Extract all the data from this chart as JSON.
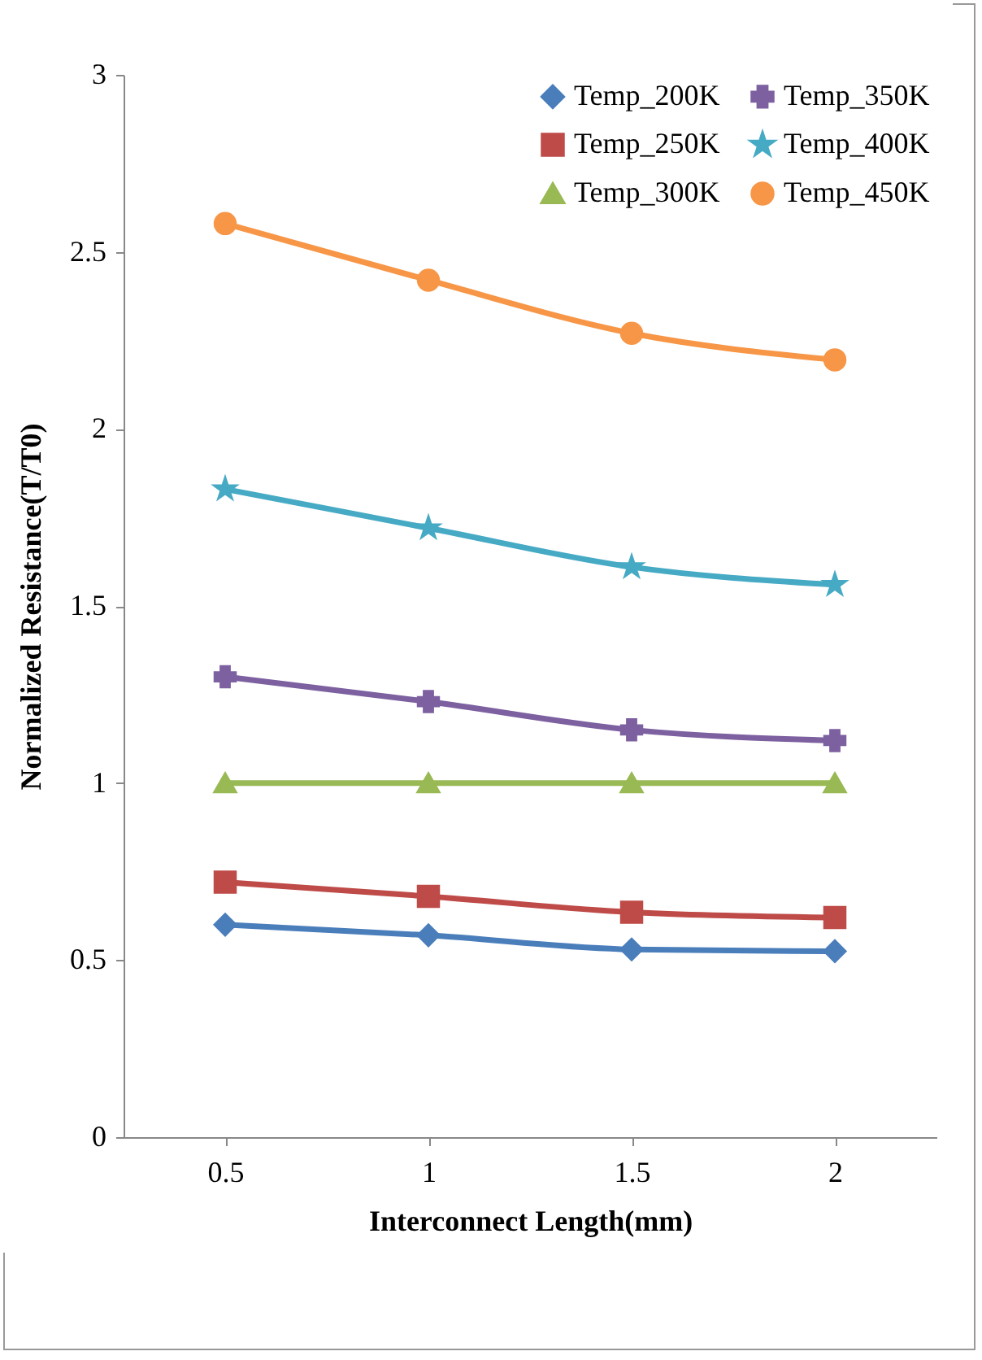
{
  "chart_data": {
    "type": "line",
    "xlabel": "Interconnect Length(mm)",
    "ylabel": "Normalized Resistance(T/T0)",
    "categories": [
      "0.5",
      "1",
      "1.5",
      "2"
    ],
    "series": [
      {
        "name": "Temp_200K",
        "color": "#4a7ebb",
        "marker": "diamond",
        "values": [
          0.6,
          0.57,
          0.53,
          0.525
        ]
      },
      {
        "name": "Temp_250K",
        "color": "#be4b48",
        "marker": "square",
        "values": [
          0.72,
          0.68,
          0.635,
          0.62
        ]
      },
      {
        "name": "Temp_300K",
        "color": "#98b954",
        "marker": "triangle",
        "values": [
          1,
          1,
          1,
          1
        ]
      },
      {
        "name": "Temp_350K",
        "color": "#7d60a0",
        "marker": "cross",
        "values": [
          1.3,
          1.23,
          1.15,
          1.12
        ]
      },
      {
        "name": "Temp_400K",
        "color": "#46aac5",
        "marker": "star",
        "values": [
          1.83,
          1.72,
          1.61,
          1.56
        ]
      },
      {
        "name": "Temp_450K",
        "color": "#f79646",
        "marker": "circle",
        "values": [
          2.58,
          2.42,
          2.27,
          2.195
        ]
      }
    ],
    "ylim": [
      0,
      3
    ],
    "yticks": [
      0,
      0.5,
      1,
      1.5,
      2,
      2.5,
      3
    ],
    "grid": false,
    "legend": "top right",
    "line_style": "solid"
  }
}
